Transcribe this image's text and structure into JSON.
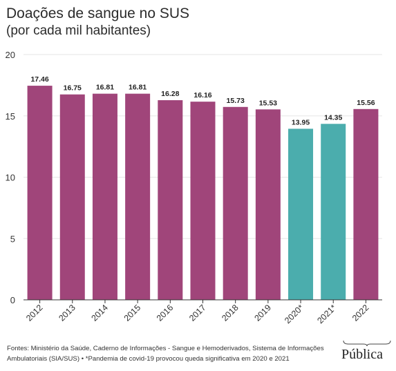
{
  "header": {
    "title": "Doações de sangue no SUS",
    "subtitle": "(por cada mil habitantes)"
  },
  "colors": {
    "regular": "#A0457A",
    "highlight": "#4BADAD",
    "grid": "#E6E6E6",
    "axis": "#333333"
  },
  "chart_data": {
    "type": "bar",
    "categories": [
      "2012",
      "2013",
      "2014",
      "2015",
      "2016",
      "2017",
      "2018",
      "2019",
      "2020*",
      "2021*",
      "2022"
    ],
    "values": [
      17.46,
      16.75,
      16.81,
      16.81,
      16.28,
      16.16,
      15.73,
      15.53,
      13.95,
      14.35,
      15.56
    ],
    "data_labels": [
      "17.46",
      "16.75",
      "16.81",
      "16.81",
      "16.28",
      "16.16",
      "15.73",
      "15.53",
      "13.95",
      "14.35",
      "15.56"
    ],
    "highlighted_categories": [
      "2020*",
      "2021*"
    ],
    "y_ticks": [
      "0",
      "5",
      "10",
      "15",
      "20"
    ],
    "ylim": [
      0,
      20
    ],
    "grid": true,
    "legend": "none"
  },
  "footer": {
    "source": "Fontes: Ministério da Saúde, Caderno de Informações - Sangue e Hemoderivados, Sistema de Informações Ambulatoriais (SIA/SUS) • *Pandemia de covid-19 provocou queda significativa em 2020 e 2021",
    "logo": "Pública"
  }
}
